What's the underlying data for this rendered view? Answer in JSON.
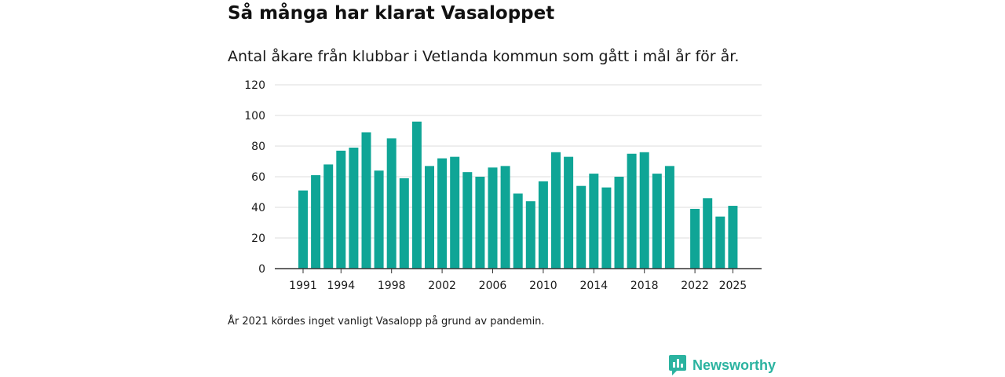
{
  "title": "Så många har klarat Vasaloppet",
  "subtitle": "Antal åkare från klubbar i Vetlanda kommun som gått i mål år för år.",
  "note": "År 2021 kördes inget vanligt Vasalopp på grund av pandemin.",
  "brand": {
    "name": "Newsworthy",
    "color": "#2bb3a0",
    "icon": "newsworthy-logo-icon"
  },
  "colors": {
    "bar": "#0fa596",
    "grid": "#dddddd",
    "axis": "#333333"
  },
  "chart_data": {
    "type": "bar",
    "title": "Så många har klarat Vasaloppet",
    "xlabel": "",
    "ylabel": "",
    "ylim": [
      0,
      120
    ],
    "yticks": [
      0,
      20,
      40,
      60,
      80,
      100,
      120
    ],
    "xticks": [
      1991,
      1994,
      1998,
      2002,
      2006,
      2010,
      2014,
      2018,
      2022,
      2025
    ],
    "categories": [
      1991,
      1992,
      1993,
      1994,
      1995,
      1996,
      1997,
      1998,
      1999,
      2000,
      2001,
      2002,
      2003,
      2004,
      2005,
      2006,
      2007,
      2008,
      2009,
      2010,
      2011,
      2012,
      2013,
      2014,
      2015,
      2016,
      2017,
      2018,
      2019,
      2020,
      2021,
      2022,
      2023,
      2024,
      2025
    ],
    "values": [
      51,
      61,
      68,
      77,
      79,
      89,
      64,
      85,
      59,
      96,
      67,
      72,
      73,
      63,
      60,
      66,
      67,
      49,
      44,
      57,
      76,
      73,
      54,
      62,
      53,
      60,
      75,
      76,
      62,
      67,
      null,
      39,
      46,
      34,
      41
    ],
    "grid": true
  }
}
